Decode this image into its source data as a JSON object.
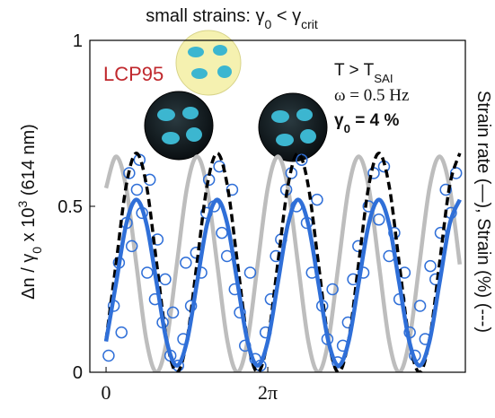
{
  "chart_data": {
    "type": "line",
    "title": [
      {
        "text": "small strains: γ"
      },
      {
        "text": "0",
        "shift": "sub"
      },
      {
        "text": " < γ"
      },
      {
        "text": "crit",
        "shift": "sub"
      }
    ],
    "ylabel": [
      {
        "text": "Δn / γ"
      },
      {
        "text": "0",
        "shift": "sub"
      },
      {
        "text": " x 10"
      },
      {
        "text": "3",
        "shift": "sup"
      },
      {
        "text": " (614 nm)"
      }
    ],
    "y2label": [
      {
        "text": "Strain rate (—), Strain (%) (---)"
      }
    ],
    "annotations": [
      [
        {
          "text": "LCP95"
        }
      ],
      [
        {
          "text": "T > T"
        },
        {
          "text": "SAI",
          "shift": "sub"
        }
      ],
      [
        {
          "text": "ω = 0.5 Hz"
        }
      ],
      [
        {
          "text": "γ"
        },
        {
          "text": "0",
          "shift": "sub"
        },
        {
          "text": " = 4 %"
        }
      ]
    ],
    "xlim": [
      -0.63,
      13.96
    ],
    "ylim": [
      0,
      1
    ],
    "xticks": [
      {
        "value": 0,
        "label": "0"
      },
      {
        "value": 6.283,
        "label": "2π"
      }
    ],
    "yticks": [
      0,
      0.5,
      1
    ],
    "x": [
      0,
      0.393,
      0.785,
      1.178,
      1.571,
      1.963,
      2.356,
      2.749,
      3.142,
      3.534,
      3.927,
      4.32,
      4.712,
      5.105,
      5.498,
      5.89,
      6.283,
      6.676,
      7.069,
      7.461,
      7.854,
      8.247,
      8.639,
      9.032,
      9.425,
      9.817,
      10.21,
      10.603,
      10.996,
      11.388,
      11.781,
      12.174,
      12.566,
      12.959,
      13.352,
      13.744
    ],
    "series": [
      {
        "type": "line",
        "color": "#bdbdbd",
        "dash": false,
        "values": [
          0.555,
          0.65,
          0.555,
          0.325,
          0.095,
          0,
          0.095,
          0.325,
          0.555,
          0.65,
          0.555,
          0.325,
          0.095,
          0,
          0.095,
          0.325,
          0.555,
          0.65,
          0.555,
          0.325,
          0.095,
          0,
          0.095,
          0.325,
          0.555,
          0.65,
          0.555,
          0.325,
          0.095,
          0,
          0.095,
          0.325,
          0.555,
          0.65,
          0.555,
          0.325
        ]
      },
      {
        "type": "scatter",
        "color": "#2f6fd8",
        "x": [
          0.1,
          0.3,
          0.5,
          0.6,
          0.8,
          0.9,
          1.0,
          1.2,
          1.3,
          1.4,
          1.6,
          1.7,
          1.9,
          2.0,
          2.2,
          2.3,
          2.5,
          2.6,
          2.8,
          3.0,
          3.1,
          3.3,
          3.5,
          3.7,
          3.9,
          4.0,
          4.2,
          4.4,
          4.5,
          4.7,
          4.9,
          5.0,
          5.2,
          5.4,
          5.6,
          5.8,
          6.0,
          6.2,
          6.4,
          6.6,
          6.8,
          7.0,
          7.2,
          7.4,
          7.6,
          7.8,
          8.0,
          8.2,
          8.4,
          8.6,
          8.8,
          9.0,
          9.2,
          9.4,
          9.6,
          9.8,
          10.0,
          10.2,
          10.4,
          10.6,
          10.8,
          11.0,
          11.2,
          11.4,
          11.6,
          11.8,
          12.0,
          12.2,
          12.4,
          12.6,
          12.8,
          13.0,
          13.2,
          13.4,
          13.6
        ],
        "values": [
          0.05,
          0.2,
          0.33,
          0.12,
          0.45,
          0.6,
          0.38,
          0.55,
          0.64,
          0.48,
          0.3,
          0.58,
          0.22,
          0.4,
          0.15,
          0.28,
          0.05,
          0.18,
          0.02,
          0.1,
          0.33,
          0.2,
          0.36,
          0.3,
          0.48,
          0.58,
          0.5,
          0.62,
          0.42,
          0.35,
          0.55,
          0.25,
          0.18,
          0.08,
          0.3,
          0.04,
          0.02,
          0.12,
          0.22,
          0.35,
          0.4,
          0.55,
          0.6,
          0.5,
          0.64,
          0.45,
          0.3,
          0.52,
          0.2,
          0.1,
          0.25,
          0.03,
          0.08,
          0.15,
          0.28,
          0.38,
          0.3,
          0.5,
          0.6,
          0.46,
          0.62,
          0.35,
          0.42,
          0.22,
          0.3,
          0.12,
          0.05,
          0.2,
          0.1,
          0.32,
          0.28,
          0.42,
          0.55,
          0.48,
          0.6
        ]
      },
      {
        "type": "line",
        "color": "#000000",
        "dash": true,
        "values": [
          0.097,
          0.33,
          0.563,
          0.66,
          0.563,
          0.33,
          0.097,
          0,
          0.097,
          0.33,
          0.563,
          0.66,
          0.563,
          0.33,
          0.097,
          0,
          0.097,
          0.33,
          0.563,
          0.66,
          0.563,
          0.33,
          0.097,
          0,
          0.097,
          0.33,
          0.563,
          0.66,
          0.563,
          0.33,
          0.097,
          0,
          0.097,
          0.33,
          0.563,
          0.66
        ]
      },
      {
        "type": "line",
        "color": "#2f6fd8",
        "dash": false,
        "values": [
          0.093,
          0.27,
          0.447,
          0.52,
          0.447,
          0.27,
          0.093,
          0.02,
          0.093,
          0.27,
          0.447,
          0.52,
          0.447,
          0.27,
          0.093,
          0.02,
          0.093,
          0.27,
          0.447,
          0.52,
          0.447,
          0.27,
          0.093,
          0.02,
          0.093,
          0.27,
          0.447,
          0.52,
          0.447,
          0.27,
          0.093,
          0.02,
          0.093,
          0.27,
          0.447,
          0.52
        ]
      }
    ]
  }
}
